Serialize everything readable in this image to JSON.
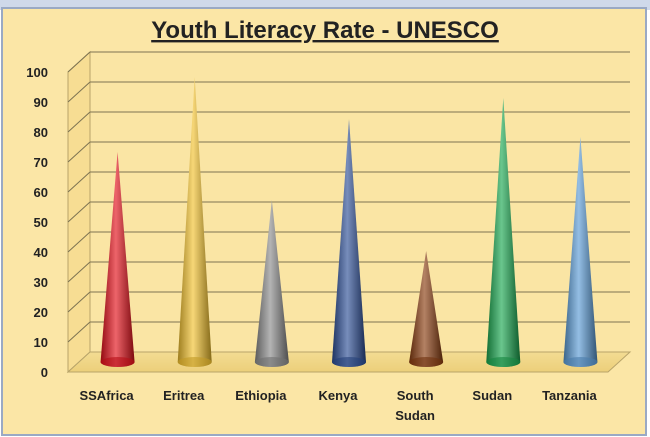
{
  "chart_data": {
    "type": "bar",
    "title": "Youth Literacy Rate - UNESCO",
    "xlabel": "",
    "ylabel": "",
    "ylim": [
      0,
      100
    ],
    "y_ticks": [
      0,
      10,
      20,
      30,
      40,
      50,
      60,
      70,
      80,
      90,
      100
    ],
    "grid": true,
    "legend": "none",
    "categories": [
      "SSAfrica",
      "Eritrea",
      "Ethiopia",
      "Kenya",
      "South Sudan",
      "Sudan",
      "Tanzania"
    ],
    "values": [
      70,
      95,
      54,
      81,
      37,
      88,
      75
    ],
    "colors": [
      "#e3101a",
      "#f2c12e",
      "#8c8c8c",
      "#2d4f96",
      "#8a3d10",
      "#1aa850",
      "#5b9bd5"
    ]
  },
  "colors": {
    "plot_background": "#fae5a4",
    "frame_background": "#fbe6a6",
    "title_color": "#222222",
    "header_strip": "#cfd9ea"
  }
}
